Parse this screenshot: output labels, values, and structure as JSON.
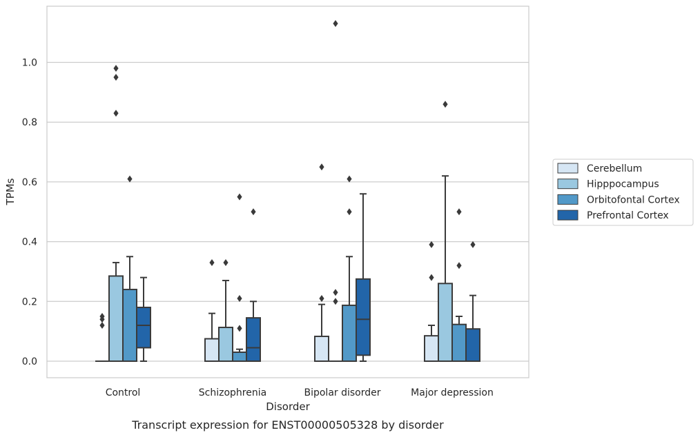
{
  "chart_data": {
    "type": "box",
    "xlabel": "Disorder",
    "ylabel": "TPMs",
    "caption": "Transcript expression for ENST00000505328 by disorder",
    "ylim": [
      -0.055,
      1.19
    ],
    "yticks": [
      0.0,
      0.2,
      0.4,
      0.6,
      0.8,
      1.0
    ],
    "ytick_labels": [
      "0.0",
      "0.2",
      "0.4",
      "0.6",
      "0.8",
      "1.0"
    ],
    "grid": "horizontal",
    "legend_position": "right",
    "categories": [
      "Control",
      "Schizophrenia",
      "Bipolar disorder",
      "Major depression"
    ],
    "series": [
      {
        "name": "Cerebellum",
        "color": "#d6e6f4",
        "boxes": [
          {
            "q1": 0.0,
            "median": 0.0,
            "q3": 0.0,
            "whisker_low": 0.0,
            "whisker_high": 0.0,
            "outliers": [
              0.12,
              0.14,
              0.15
            ]
          },
          {
            "q1": 0.0,
            "median": 0.0,
            "q3": 0.075,
            "whisker_low": 0.0,
            "whisker_high": 0.16,
            "outliers": [
              0.33
            ]
          },
          {
            "q1": 0.0,
            "median": 0.0,
            "q3": 0.083,
            "whisker_low": 0.0,
            "whisker_high": 0.19,
            "outliers": [
              0.21,
              0.65
            ]
          },
          {
            "q1": 0.0,
            "median": 0.0,
            "q3": 0.085,
            "whisker_low": 0.0,
            "whisker_high": 0.12,
            "outliers": [
              0.28,
              0.39
            ]
          }
        ]
      },
      {
        "name": "Hipppocampus",
        "color": "#9ac8e0",
        "boxes": [
          {
            "q1": 0.0,
            "median": 0.0,
            "q3": 0.285,
            "whisker_low": 0.0,
            "whisker_high": 0.33,
            "outliers": [
              0.83,
              0.95,
              0.98
            ]
          },
          {
            "q1": 0.0,
            "median": 0.0,
            "q3": 0.113,
            "whisker_low": 0.0,
            "whisker_high": 0.27,
            "outliers": [
              0.33
            ]
          },
          {
            "q1": 0.0,
            "median": 0.0,
            "q3": 0.0,
            "whisker_low": 0.0,
            "whisker_high": 0.0,
            "outliers": [
              0.2,
              0.23,
              1.13
            ]
          },
          {
            "q1": 0.0,
            "median": 0.0,
            "q3": 0.26,
            "whisker_low": 0.0,
            "whisker_high": 0.62,
            "outliers": [
              0.86
            ]
          }
        ]
      },
      {
        "name": "Orbitofontal Cortex",
        "color": "#5299c8",
        "boxes": [
          {
            "q1": 0.0,
            "median": 0.0,
            "q3": 0.24,
            "whisker_low": 0.0,
            "whisker_high": 0.35,
            "outliers": [
              0.61
            ]
          },
          {
            "q1": 0.0,
            "median": 0.0,
            "q3": 0.03,
            "whisker_low": 0.0,
            "whisker_high": 0.04,
            "outliers": [
              0.11,
              0.21,
              0.55
            ]
          },
          {
            "q1": 0.0,
            "median": 0.0,
            "q3": 0.187,
            "whisker_low": 0.0,
            "whisker_high": 0.35,
            "outliers": [
              0.5,
              0.61
            ]
          },
          {
            "q1": 0.0,
            "median": 0.0,
            "q3": 0.123,
            "whisker_low": 0.0,
            "whisker_high": 0.15,
            "outliers": [
              0.32,
              0.5
            ]
          }
        ]
      },
      {
        "name": "Prefrontal Cortex",
        "color": "#2265a9",
        "boxes": [
          {
            "q1": 0.045,
            "median": 0.12,
            "q3": 0.18,
            "whisker_low": 0.0,
            "whisker_high": 0.28,
            "outliers": []
          },
          {
            "q1": 0.0,
            "median": 0.045,
            "q3": 0.145,
            "whisker_low": 0.0,
            "whisker_high": 0.2,
            "outliers": [
              0.5
            ]
          },
          {
            "q1": 0.02,
            "median": 0.14,
            "q3": 0.275,
            "whisker_low": 0.0,
            "whisker_high": 0.56,
            "outliers": []
          },
          {
            "q1": 0.0,
            "median": 0.0,
            "q3": 0.108,
            "whisker_low": 0.0,
            "whisker_high": 0.22,
            "outliers": [
              0.39
            ]
          }
        ]
      }
    ]
  }
}
